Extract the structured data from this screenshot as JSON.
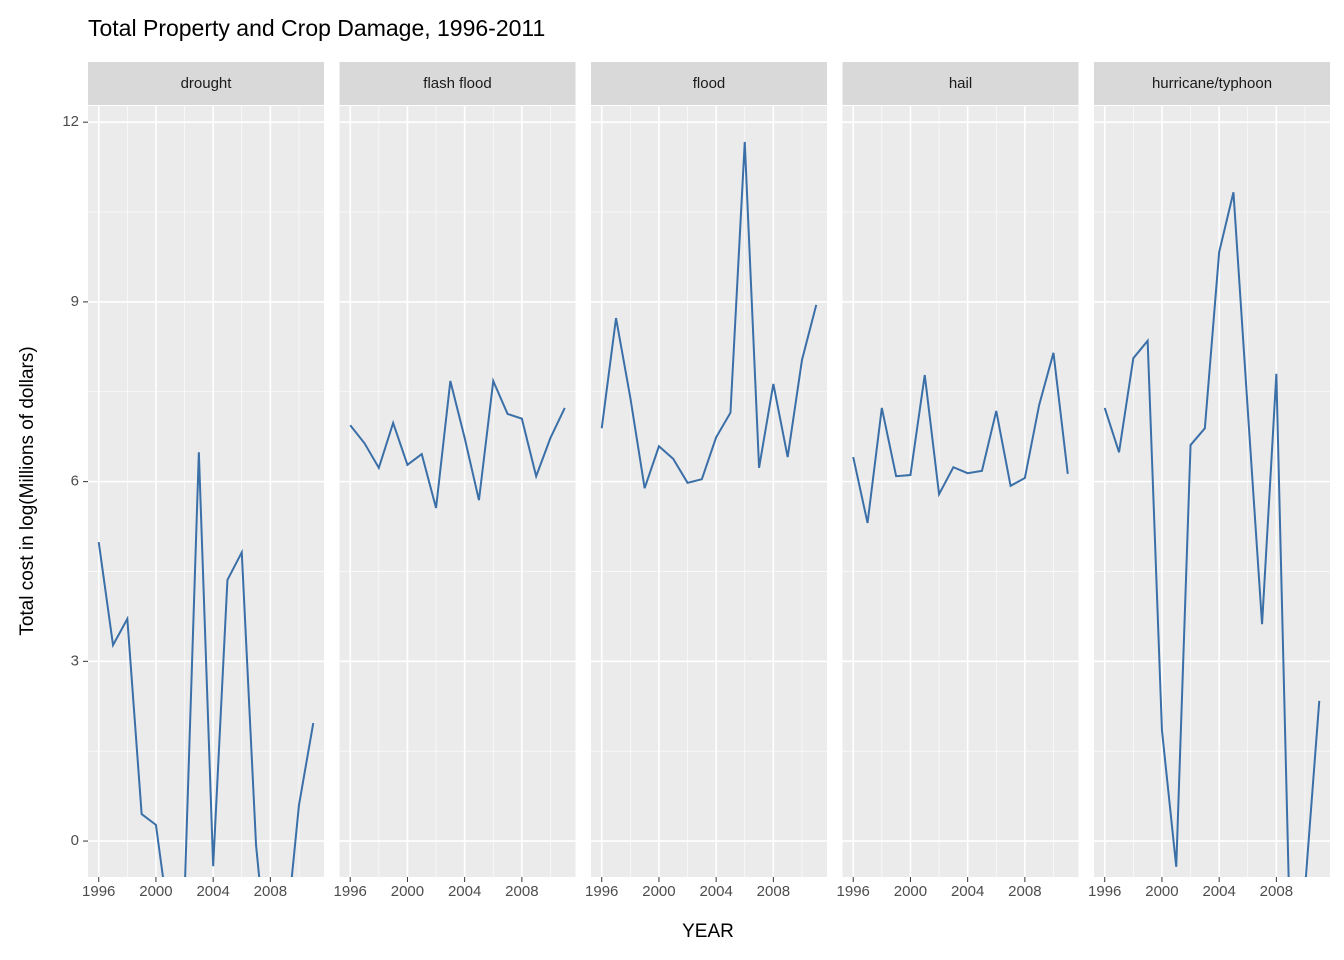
{
  "chart_data": {
    "type": "line",
    "title": "Total Property and Crop Damage, 1996-2011",
    "x_label": "YEAR",
    "y_label": "Total cost in log(Millions of dollars)",
    "facet": true,
    "grid": true,
    "x": [
      1996,
      1997,
      1998,
      1999,
      2000,
      2001,
      2002,
      2003,
      2004,
      2005,
      2006,
      2007,
      2008,
      2009,
      2010,
      2011
    ],
    "xlim": [
      1995.25,
      2011.75
    ],
    "xticks": [
      1996,
      2000,
      2004,
      2008
    ],
    "ylim": [
      -0.6,
      12.27
    ],
    "yticks": [
      0,
      3,
      6,
      9,
      12
    ],
    "series": [
      {
        "name": "drought",
        "color": "#3a6fa8",
        "values": [
          4.99,
          3.27,
          3.71,
          0.45,
          0.27,
          -1.5,
          -0.9,
          6.49,
          -0.42,
          4.36,
          4.82,
          -0.07,
          -2.5,
          -1.8,
          0.6,
          1.97
        ]
      },
      {
        "name": "flash flood",
        "color": "#3a6fa8",
        "values": [
          6.94,
          6.64,
          6.23,
          6.98,
          6.28,
          6.46,
          5.56,
          7.68,
          6.73,
          5.69,
          7.68,
          7.13,
          7.05,
          6.09,
          6.73,
          7.23
        ]
      },
      {
        "name": "flood",
        "color": "#3a6fa8",
        "values": [
          6.89,
          8.73,
          7.4,
          5.89,
          6.59,
          6.38,
          5.98,
          6.04,
          6.74,
          7.15,
          11.67,
          6.23,
          7.63,
          6.41,
          8.03,
          8.95
        ]
      },
      {
        "name": "hail",
        "color": "#3a6fa8",
        "values": [
          6.41,
          5.31,
          7.23,
          6.09,
          6.11,
          7.78,
          5.79,
          6.24,
          6.14,
          6.18,
          7.18,
          5.93,
          6.06,
          7.28,
          8.15,
          6.13
        ]
      },
      {
        "name": "hurricane/typhoon",
        "color": "#3a6fa8",
        "values": [
          7.23,
          6.49,
          8.06,
          8.35,
          1.85,
          -0.43,
          6.61,
          6.89,
          9.83,
          10.83,
          7.2,
          3.62,
          7.8,
          -2,
          -0.8,
          2.34
        ]
      }
    ]
  }
}
